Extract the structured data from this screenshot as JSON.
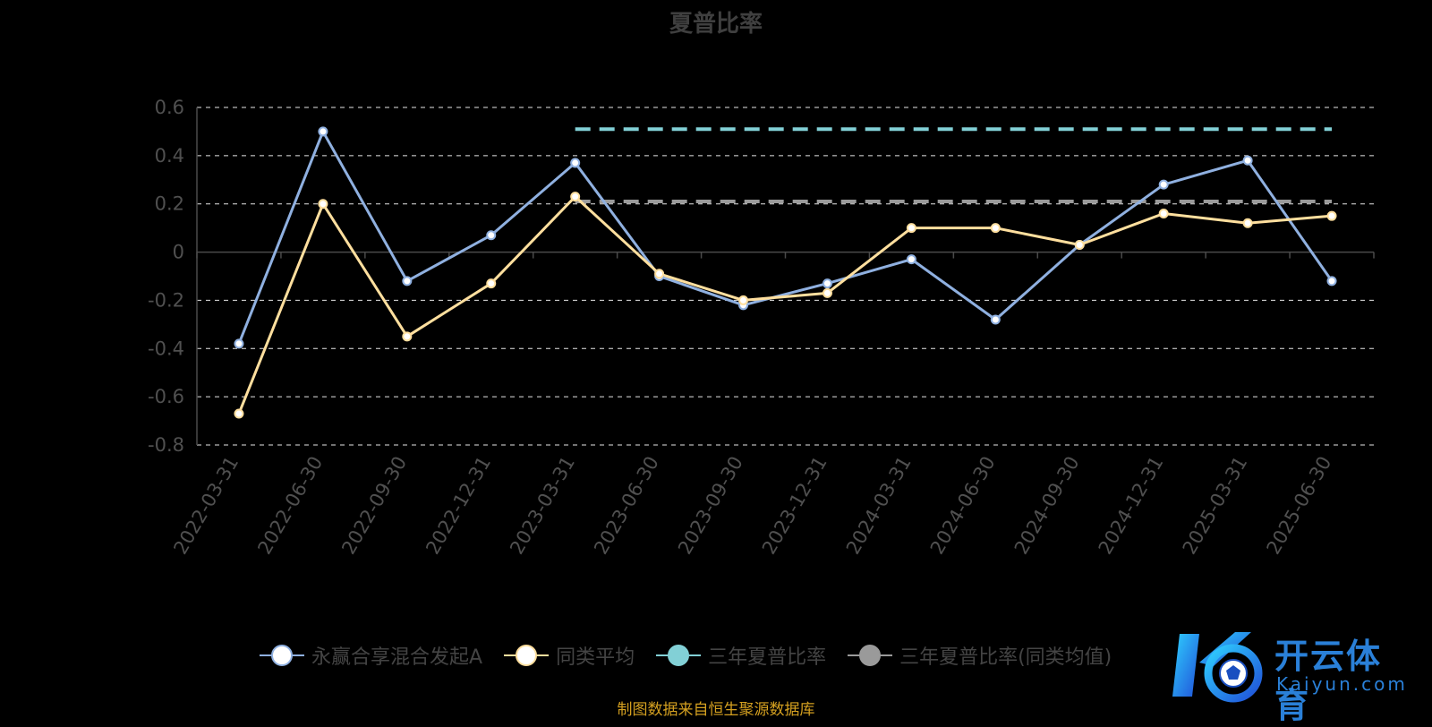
{
  "title": "夏普比率",
  "source_note": "制图数据来自恒生聚源数据库",
  "logo": {
    "text_cn": "开云体育",
    "text_en": "Kaiyun.com"
  },
  "colors": {
    "background": "#000000",
    "fund": "#8fb0e0",
    "peer": "#ffdf9e",
    "three_year": "#82d0d6",
    "three_year_peer": "#9a9a9a",
    "grid": "#ffffff",
    "axis_text": "#505050",
    "source": "#d4a020",
    "logo": "#2a80d8"
  },
  "legend": [
    {
      "label": "永赢合享混合发起A",
      "color": "#8fb0e0",
      "marker": "#ffffff"
    },
    {
      "label": "同类平均",
      "color": "#ffdf9e",
      "marker": "#ffffff"
    },
    {
      "label": "三年夏普比率",
      "color": "#82d0d6",
      "marker": "#82d0d6"
    },
    {
      "label": "三年夏普比率(同类均值)",
      "color": "#9a9a9a",
      "marker": "#9a9a9a"
    }
  ],
  "chart_data": {
    "type": "line",
    "title": "夏普比率",
    "categories": [
      "2022-03-31",
      "2022-06-30",
      "2022-09-30",
      "2022-12-31",
      "2023-03-31",
      "2023-06-30",
      "2023-09-30",
      "2023-12-31",
      "2024-03-31",
      "2024-06-30",
      "2024-09-30",
      "2024-12-31",
      "2025-03-31",
      "2025-06-30"
    ],
    "ylim": [
      -0.8,
      0.6
    ],
    "yticks": [
      0.6,
      0.4,
      0.2,
      0,
      -0.2,
      -0.4,
      -0.6,
      -0.8
    ],
    "ytick_labels": [
      "0.6",
      "0.4",
      "0.2",
      "0",
      "-0.2",
      "-0.4",
      "-0.6",
      "-0.8"
    ],
    "grid": true,
    "legend_position": "bottom",
    "series": [
      {
        "name": "永赢合享混合发起A",
        "values": [
          -0.38,
          0.5,
          -0.12,
          0.07,
          0.37,
          -0.1,
          -0.22,
          -0.13,
          -0.03,
          -0.28,
          0.03,
          0.28,
          0.38,
          -0.12
        ]
      },
      {
        "name": "同类平均",
        "values": [
          -0.67,
          0.2,
          -0.35,
          -0.13,
          0.23,
          -0.09,
          -0.2,
          -0.17,
          0.1,
          0.1,
          0.03,
          0.16,
          0.12,
          0.15
        ]
      }
    ],
    "reference_lines": [
      {
        "name": "三年夏普比率",
        "value": 0.51,
        "from": "2023-03-31",
        "to": "2025-06-30"
      },
      {
        "name": "三年夏普比率(同类均值)",
        "value": 0.21,
        "from": "2023-03-31",
        "to": "2025-06-30"
      }
    ]
  }
}
